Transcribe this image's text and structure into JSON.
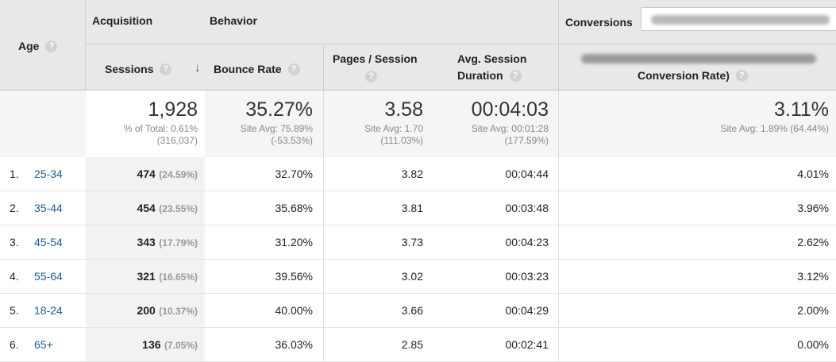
{
  "headers": {
    "age": "Age",
    "acquisition": "Acquisition",
    "behavior": "Behavior",
    "conversions": "Conversions",
    "sessions": "Sessions",
    "bounce_rate": "Bounce Rate",
    "pages_per_session_line1": "Pages / Session",
    "avg_session_duration_line1": "Avg. Session",
    "avg_session_duration_line2": "Duration",
    "conversion_rate": "Conversion Rate)",
    "help_glyph": "?",
    "sort_glyph": "↓"
  },
  "totals": {
    "sessions": "1,928",
    "sessions_sub1": "% of Total: 0.61%",
    "sessions_sub2": "(316,037)",
    "bounce_rate": "35.27%",
    "bounce_sub1": "Site Avg: 75.89%",
    "bounce_sub2": "(-53.53%)",
    "pages": "3.58",
    "pages_sub1": "Site Avg: 1.70",
    "pages_sub2": "(111.03%)",
    "duration": "00:04:03",
    "duration_sub1": "Site Avg: 00:01:28",
    "duration_sub2": "(177.59%)",
    "conversion": "3.11%",
    "conversion_sub1": "Site Avg: 1.89% (64.44%)"
  },
  "rows": [
    {
      "idx": "1.",
      "age": "25-34",
      "sessions": "474",
      "share": "(24.59%)",
      "bounce": "32.70%",
      "pages": "3.82",
      "duration": "00:04:44",
      "conversion": "4.01%"
    },
    {
      "idx": "2.",
      "age": "35-44",
      "sessions": "454",
      "share": "(23.55%)",
      "bounce": "35.68%",
      "pages": "3.81",
      "duration": "00:03:48",
      "conversion": "3.96%"
    },
    {
      "idx": "3.",
      "age": "45-54",
      "sessions": "343",
      "share": "(17.79%)",
      "bounce": "31.20%",
      "pages": "3.73",
      "duration": "00:04:23",
      "conversion": "2.62%"
    },
    {
      "idx": "4.",
      "age": "55-64",
      "sessions": "321",
      "share": "(16.65%)",
      "bounce": "39.56%",
      "pages": "3.02",
      "duration": "00:03:23",
      "conversion": "3.12%"
    },
    {
      "idx": "5.",
      "age": "18-24",
      "sessions": "200",
      "share": "(10.37%)",
      "bounce": "40.00%",
      "pages": "3.66",
      "duration": "00:04:29",
      "conversion": "2.00%"
    },
    {
      "idx": "6.",
      "age": "65+",
      "sessions": "136",
      "share": "(7.05%)",
      "bounce": "36.03%",
      "pages": "2.85",
      "duration": "00:02:41",
      "conversion": "0.00%"
    }
  ],
  "colors": {
    "header_bg": "#e8e8e8",
    "sessions_col_bg": "#f2f2f2",
    "link": "#1f5c97",
    "border": "#cfcfcf"
  }
}
